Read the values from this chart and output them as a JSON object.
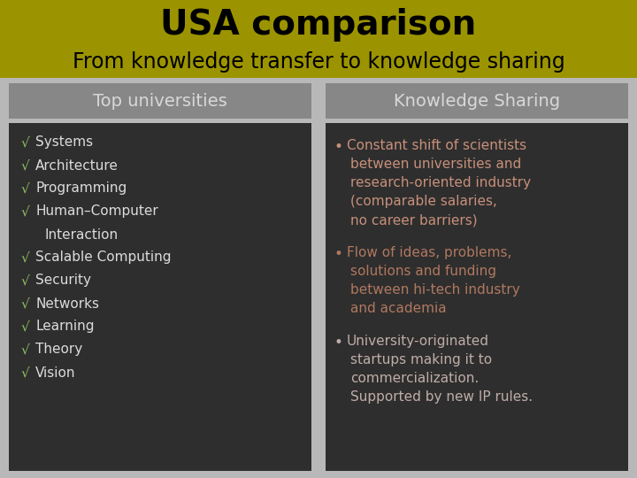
{
  "title": "USA comparison",
  "subtitle": "From knowledge transfer to knowledge sharing",
  "title_bg": "#9B9400",
  "bg_color": "#B8B8B8",
  "header_bg": "#878787",
  "content_bg": "#2E2E2E",
  "left_header": "Top universities",
  "right_header": "Knowledge Sharing",
  "left_items": [
    "Systems",
    "Architecture",
    "Programming",
    "Human–Computer",
    "    Interaction",
    "Scalable Computing",
    "Security",
    "Networks",
    "Learning",
    "Theory",
    "Vision"
  ],
  "left_item_nocheck": [
    "    Interaction"
  ],
  "left_item_color": "#DCDCDC",
  "left_check_color": "#90C060",
  "right_bullets": [
    "Constant shift of scientists\nbetween universities and\nresearch-oriented industry\n(comparable salaries,\nno career barriers)",
    "Flow of ideas, problems,\nsolutions and funding\nbetween hi-tech industry\nand academia",
    "University-originated\nstartups making it to\ncommercialization.\nSupported by new IP rules."
  ],
  "right_bullet1_color": "#C8907A",
  "right_bullet2_color": "#B07860",
  "right_bullet3_color": "#C0ADA8",
  "header_text_color": "#D8D8D8",
  "title_fontsize": 28,
  "subtitle_fontsize": 17,
  "header_fontsize": 14,
  "item_fontsize": 11,
  "bullet_fontsize": 11
}
